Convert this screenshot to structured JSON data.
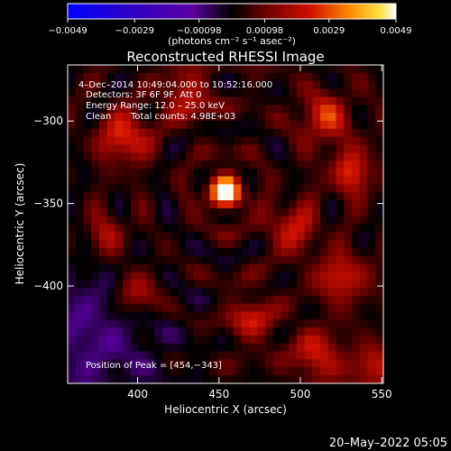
{
  "colorbar": {
    "ticks": [
      "−0.0049",
      "−0.0029",
      "−0.00098",
      "0.00098",
      "0.0029",
      "0.0049"
    ],
    "tick_values": [
      -0.0049,
      -0.0029,
      -0.00098,
      0.00098,
      0.0029,
      0.0049
    ],
    "unit": "(photons cm⁻² s⁻¹ asec⁻²)",
    "range": [
      -0.0049,
      0.0049
    ]
  },
  "colors": {
    "background": "#000000",
    "text": "#ffffff"
  },
  "date_stamp": "20–May–2022 05:05",
  "chart_data": {
    "type": "heatmap",
    "title": "Reconstructed RHESSI Image",
    "xlabel": "Heliocentric X (arcsec)",
    "ylabel": "Heliocentric Y (arcsec)",
    "xlim": [
      357,
      551
    ],
    "ylim": [
      -459,
      -266
    ],
    "x_ticks": [
      {
        "value": 400,
        "label": "400"
      },
      {
        "value": 450,
        "label": "450"
      },
      {
        "value": 500,
        "label": "500"
      },
      {
        "value": 550,
        "label": "550"
      }
    ],
    "y_ticks": [
      {
        "value": -300,
        "label": "−300"
      },
      {
        "value": -350,
        "label": "−350"
      },
      {
        "value": -400,
        "label": "−400"
      }
    ],
    "annotations": [
      "4–Dec–2014 10:49:04.000 to 10:52:16.000",
      "Detectors: 3F 6F 9F, Att 0",
      "Energy Range: 12.0 – 25.0 keV",
      "Clean",
      "Total counts: 4.98E+03"
    ],
    "peak_label": "Position of Peak = [454,−343]",
    "peak": {
      "x": 454,
      "y": -343
    },
    "sources": [
      {
        "x": 454,
        "y": -343,
        "value": 0.0049
      },
      {
        "x": 392,
        "y": -310,
        "value": 0.0023
      },
      {
        "x": 515,
        "y": -298,
        "value": 0.0021
      },
      {
        "x": 532,
        "y": -331,
        "value": 0.0019
      },
      {
        "x": 495,
        "y": -365,
        "value": 0.0018
      },
      {
        "x": 525,
        "y": -395,
        "value": 0.002
      },
      {
        "x": 510,
        "y": -442,
        "value": 0.0019
      },
      {
        "x": 430,
        "y": -285,
        "value": 0.0017
      },
      {
        "x": 400,
        "y": -405,
        "value": 0.0018
      },
      {
        "x": 470,
        "y": -420,
        "value": 0.0016
      },
      {
        "x": 545,
        "y": -450,
        "value": 0.0016
      },
      {
        "x": 380,
        "y": -370,
        "value": 0.0014
      }
    ],
    "negative_region": {
      "x": 370,
      "y": -430,
      "value": -0.0012
    }
  }
}
